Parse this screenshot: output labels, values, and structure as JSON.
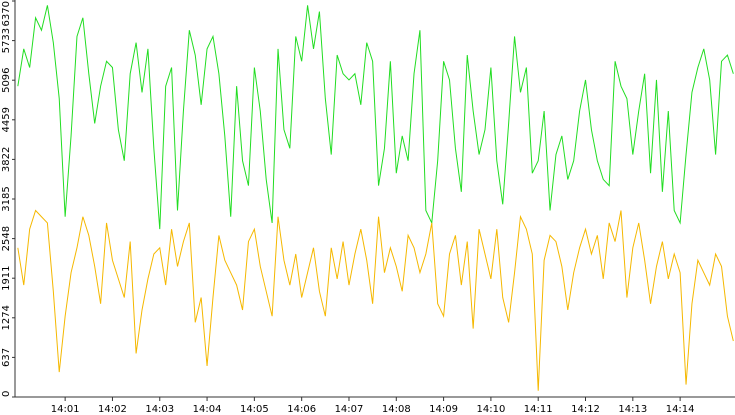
{
  "chart_data": {
    "type": "line",
    "x": [
      0,
      0.125,
      0.25,
      0.375,
      0.5,
      0.625,
      0.75,
      0.875,
      1,
      1.125,
      1.25,
      1.375,
      1.5,
      1.625,
      1.75,
      1.875,
      2,
      2.125,
      2.25,
      2.375,
      2.5,
      2.625,
      2.75,
      2.875,
      3,
      3.125,
      3.25,
      3.375,
      3.5,
      3.625,
      3.75,
      3.875,
      4,
      4.125,
      4.25,
      4.375,
      4.5,
      4.625,
      4.75,
      4.875,
      5,
      5.125,
      5.25,
      5.375,
      5.5,
      5.625,
      5.75,
      5.875,
      6,
      6.125,
      6.25,
      6.375,
      6.5,
      6.625,
      6.75,
      6.875,
      7,
      7.125,
      7.25,
      7.375,
      7.5,
      7.625,
      7.75,
      7.875,
      8,
      8.125,
      8.25,
      8.375,
      8.5,
      8.625,
      8.75,
      8.875,
      9,
      9.125,
      9.25,
      9.375,
      9.5,
      9.625,
      9.75,
      9.875,
      10,
      10.125,
      10.25,
      10.375,
      10.5,
      10.625,
      10.75,
      10.875,
      11,
      11.125,
      11.25,
      11.375,
      11.5,
      11.625,
      11.75,
      11.875,
      12,
      12.125,
      12.25,
      12.375,
      12.5,
      12.625,
      12.75,
      12.875,
      13,
      13.125,
      13.25,
      13.375,
      13.5,
      13.625,
      13.75,
      13.875,
      14,
      14.125,
      14.25,
      14.375,
      14.5,
      14.625,
      14.75,
      14.875,
      15,
      15.125
    ],
    "series": [
      {
        "color": "#22dd22",
        "values": [
          5000,
          5600,
          5300,
          6100,
          5900,
          6300,
          5700,
          4800,
          2900,
          4200,
          5800,
          6100,
          5200,
          4400,
          5000,
          5400,
          5300,
          4300,
          3800,
          5200,
          5700,
          4900,
          5600,
          4000,
          2700,
          5000,
          5300,
          3000,
          4600,
          5900,
          5500,
          4700,
          5600,
          5800,
          5200,
          4200,
          2900,
          5000,
          3800,
          3400,
          5300,
          4600,
          3500,
          2800,
          5600,
          4300,
          4000,
          5800,
          5400,
          6300,
          5600,
          6200,
          4800,
          3900,
          5500,
          5200,
          5100,
          5200,
          4700,
          5700,
          5400,
          3400,
          4000,
          5400,
          3600,
          4200,
          3800,
          5200,
          5900,
          3000,
          2800,
          3800,
          5400,
          5100,
          4000,
          3300,
          5500,
          4600,
          3900,
          4300,
          5300,
          3800,
          3100,
          4400,
          5800,
          4900,
          5300,
          3600,
          3800,
          4600,
          3000,
          3900,
          4200,
          3500,
          3800,
          4600,
          5100,
          4300,
          3800,
          3500,
          3400,
          5400,
          5000,
          4800,
          3900,
          4600,
          5200,
          3600,
          5100,
          3300,
          4600,
          3000,
          2800,
          3900,
          4900,
          5300,
          5600,
          5100,
          3900,
          5400,
          5500,
          5200
        ]
      },
      {
        "color": "#f5b800",
        "values": [
          2400,
          1800,
          2700,
          3000,
          2900,
          2800,
          1700,
          400,
          1300,
          2000,
          2400,
          2900,
          2600,
          2100,
          1500,
          2800,
          2200,
          1900,
          1600,
          2500,
          700,
          1400,
          1900,
          2300,
          2400,
          1800,
          2700,
          2100,
          2500,
          2800,
          1200,
          1600,
          500,
          1600,
          2600,
          2200,
          2000,
          1800,
          1400,
          2500,
          2700,
          2100,
          1700,
          1300,
          2900,
          2200,
          1800,
          2300,
          1600,
          2000,
          2400,
          1700,
          1300,
          2400,
          1900,
          2500,
          1800,
          2300,
          2700,
          2200,
          1500,
          2900,
          2000,
          2400,
          2100,
          1700,
          2600,
          2400,
          2000,
          2300,
          2800,
          1500,
          1300,
          2300,
          2600,
          1800,
          2500,
          1100,
          2700,
          2300,
          1900,
          2700,
          1600,
          1200,
          2000,
          2900,
          2700,
          2300,
          100,
          2200,
          2600,
          2500,
          2100,
          1400,
          2000,
          2400,
          2700,
          2300,
          2600,
          1900,
          2800,
          2500,
          3000,
          1600,
          2400,
          2800,
          2200,
          1500,
          2100,
          2500,
          1900,
          2300,
          2000,
          200,
          1500,
          2200,
          2000,
          1800,
          2300,
          2100,
          1300,
          900
        ]
      }
    ],
    "xlim": [
      -0.06,
      15.16
    ],
    "xticks": [
      {
        "value": 1,
        "label": "14:01"
      },
      {
        "value": 2,
        "label": "14:02"
      },
      {
        "value": 3,
        "label": "14:03"
      },
      {
        "value": 4,
        "label": "14:04"
      },
      {
        "value": 5,
        "label": "14:05"
      },
      {
        "value": 6,
        "label": "14:06"
      },
      {
        "value": 7,
        "label": "14:07"
      },
      {
        "value": 8,
        "label": "14:08"
      },
      {
        "value": 9,
        "label": "14:09"
      },
      {
        "value": 10,
        "label": "14:10"
      },
      {
        "value": 11,
        "label": "14:11"
      },
      {
        "value": 12,
        "label": "14:12"
      },
      {
        "value": 13,
        "label": "14:13"
      },
      {
        "value": 14,
        "label": "14:14"
      }
    ],
    "ylim": [
      0,
      6370
    ],
    "yticks": [
      0,
      637,
      1274,
      1911,
      2548,
      3185,
      3822,
      4459,
      5096,
      5733,
      6370
    ]
  }
}
